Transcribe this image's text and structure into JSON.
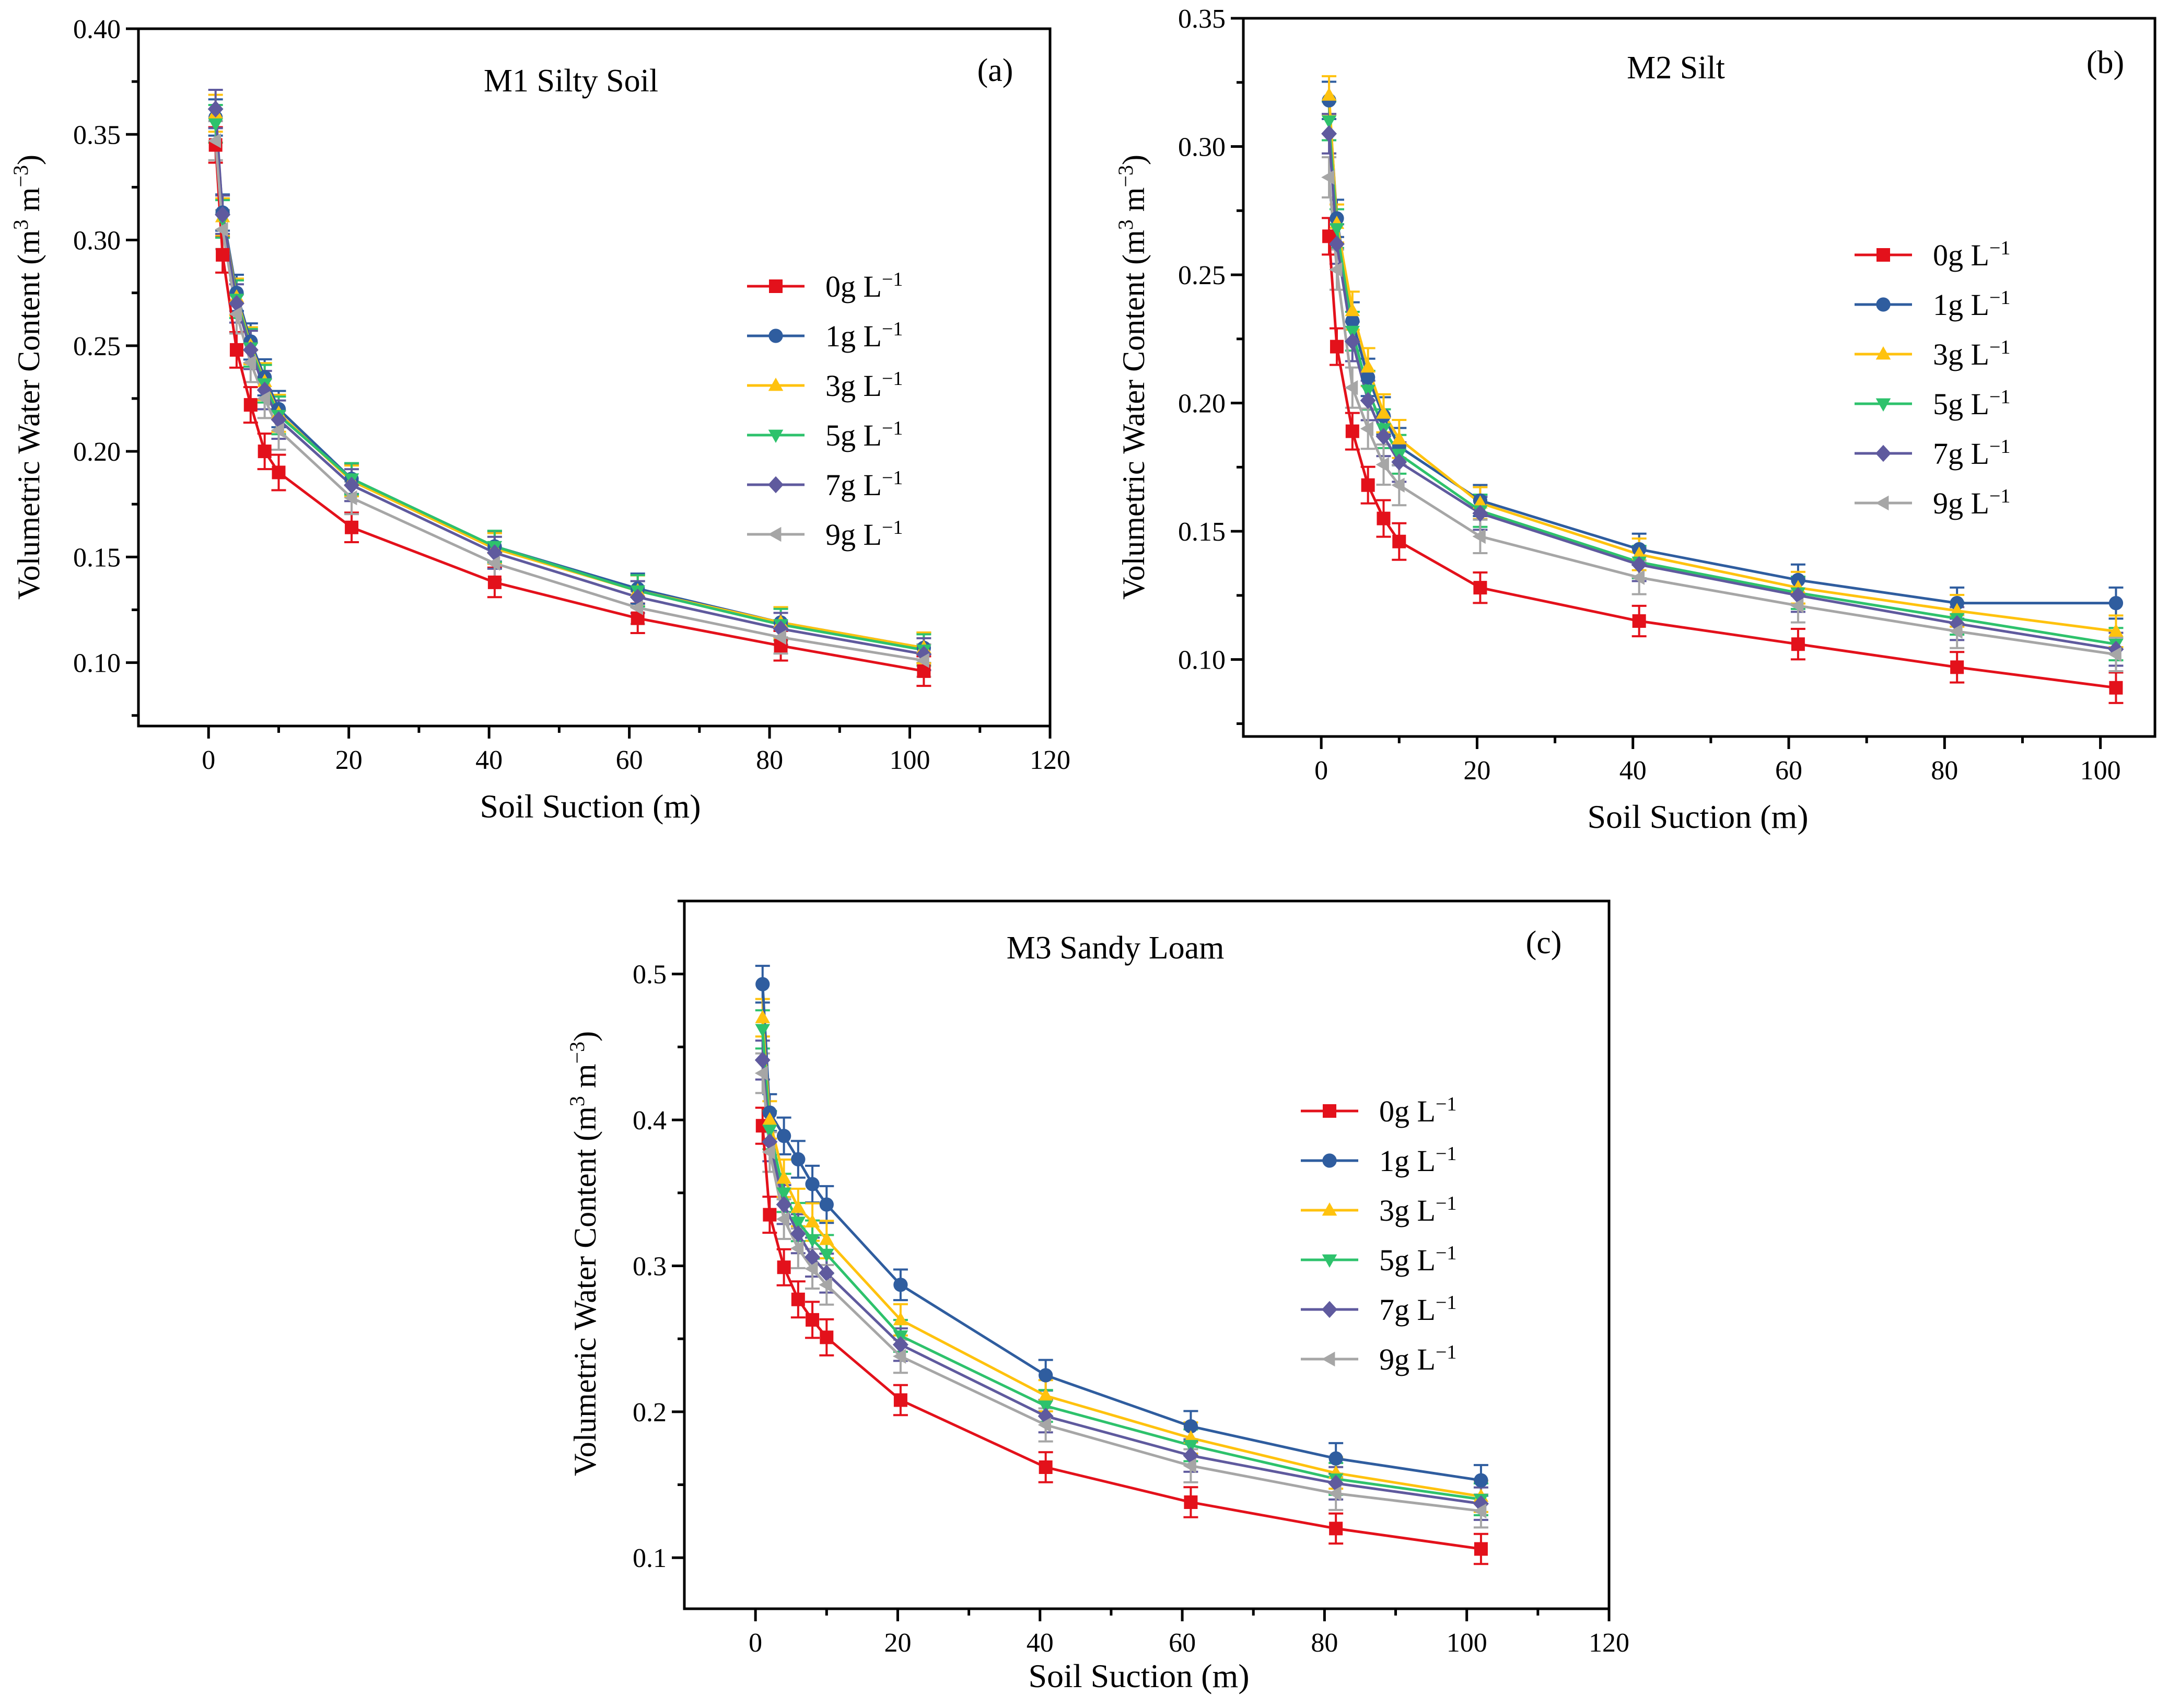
{
  "chart_data": [
    {
      "type": "line",
      "panel_label": "(a)",
      "title": "M1 Silty Soil",
      "xlabel": "Soil Suction (m)",
      "ylabel": {
        "main": "Volumetric  Water Content  (m",
        "sup1": "3",
        "mid": " m",
        "sup2": "−3",
        "end": ")"
      },
      "xlim": [
        -10,
        120
      ],
      "ylim": [
        0.07,
        0.4
      ],
      "xticks": [
        "0",
        "20",
        "40",
        "60",
        "80",
        "100",
        "120"
      ],
      "yticks": [
        "0.10",
        "0.15",
        "0.20",
        "0.25",
        "0.30",
        "0.35",
        "0.40"
      ],
      "x": [
        1,
        2,
        4,
        6,
        8,
        10,
        20.4,
        40.8,
        61.2,
        81.6,
        102
      ],
      "series": [
        {
          "name": "0g",
          "values": [
            0.345,
            0.293,
            0.248,
            0.222,
            0.2,
            0.19,
            0.164,
            0.138,
            0.121,
            0.108,
            0.096
          ]
        },
        {
          "name": "1g",
          "values": [
            0.358,
            0.313,
            0.275,
            0.252,
            0.235,
            0.22,
            0.187,
            0.155,
            0.135,
            0.119,
            0.107
          ]
        },
        {
          "name": "3g",
          "values": [
            0.36,
            0.311,
            0.273,
            0.25,
            0.233,
            0.218,
            0.186,
            0.154,
            0.134,
            0.119,
            0.107
          ]
        },
        {
          "name": "5g",
          "values": [
            0.355,
            0.31,
            0.272,
            0.249,
            0.232,
            0.217,
            0.187,
            0.155,
            0.134,
            0.118,
            0.106
          ]
        },
        {
          "name": "7g",
          "values": [
            0.362,
            0.312,
            0.27,
            0.248,
            0.229,
            0.215,
            0.184,
            0.152,
            0.131,
            0.116,
            0.104
          ]
        },
        {
          "name": "9g",
          "values": [
            0.347,
            0.305,
            0.265,
            0.242,
            0.225,
            0.21,
            0.178,
            0.147,
            0.126,
            0.112,
            0.101
          ]
        }
      ]
    },
    {
      "type": "line",
      "panel_label": "(b)",
      "title": "M2 Silt",
      "xlabel": "Soil Suction (m)",
      "ylabel": {
        "main": "Volumetric  Water Content  (m",
        "sup1": "3",
        "mid": " m",
        "sup2": "−3",
        "end": ")"
      },
      "xlim": [
        -10,
        107
      ],
      "ylim": [
        0.07,
        0.35
      ],
      "xticks": [
        "0",
        "20",
        "40",
        "60",
        "80",
        "100"
      ],
      "yticks": [
        "0.10",
        "0.15",
        "0.20",
        "0.25",
        "0.30",
        "0.35"
      ],
      "x": [
        1,
        2,
        4,
        6,
        8,
        10,
        20.4,
        40.8,
        61.2,
        81.6,
        102
      ],
      "series": [
        {
          "name": "0g",
          "values": [
            0.265,
            0.222,
            0.189,
            0.168,
            0.155,
            0.146,
            0.128,
            0.115,
            0.106,
            0.097,
            0.089
          ]
        },
        {
          "name": "1g",
          "values": [
            0.318,
            0.272,
            0.232,
            0.21,
            0.195,
            0.183,
            0.162,
            0.143,
            0.131,
            0.122,
            0.122
          ]
        },
        {
          "name": "3g",
          "values": [
            0.32,
            0.27,
            0.236,
            0.214,
            0.196,
            0.186,
            0.161,
            0.141,
            0.128,
            0.119,
            0.111
          ]
        },
        {
          "name": "5g",
          "values": [
            0.31,
            0.268,
            0.228,
            0.205,
            0.19,
            0.18,
            0.158,
            0.138,
            0.126,
            0.116,
            0.106
          ]
        },
        {
          "name": "7g",
          "values": [
            0.305,
            0.262,
            0.224,
            0.201,
            0.187,
            0.177,
            0.157,
            0.137,
            0.125,
            0.114,
            0.104
          ]
        },
        {
          "name": "9g",
          "values": [
            0.288,
            0.252,
            0.206,
            0.19,
            0.176,
            0.168,
            0.148,
            0.132,
            0.121,
            0.111,
            0.102
          ]
        }
      ]
    },
    {
      "type": "line",
      "panel_label": "(c)",
      "title": "M3 Sandy Loam",
      "xlabel": "Soil Suction (m)",
      "ylabel": {
        "main": "Volumetric  Water Content  (m",
        "sup1": "3",
        "mid": " m",
        "sup2": "−3",
        "end": ")"
      },
      "xlim": [
        -10,
        120
      ],
      "ylim": [
        0.065,
        0.55
      ],
      "xticks": [
        "0",
        "20",
        "40",
        "60",
        "80",
        "100",
        "120"
      ],
      "yticks": [
        "0.1",
        "0.2",
        "0.3",
        "0.4",
        "0.5"
      ],
      "x": [
        1,
        2,
        4,
        6,
        8,
        10,
        20.4,
        40.8,
        61.2,
        81.6,
        102
      ],
      "series": [
        {
          "name": "0g",
          "values": [
            0.396,
            0.335,
            0.299,
            0.277,
            0.263,
            0.251,
            0.208,
            0.162,
            0.138,
            0.12,
            0.106
          ]
        },
        {
          "name": "1g",
          "values": [
            0.493,
            0.405,
            0.389,
            0.373,
            0.356,
            0.342,
            0.287,
            0.225,
            0.19,
            0.168,
            0.153
          ]
        },
        {
          "name": "3g",
          "values": [
            0.47,
            0.4,
            0.36,
            0.34,
            0.33,
            0.318,
            0.263,
            0.211,
            0.182,
            0.158,
            0.142
          ]
        },
        {
          "name": "5g",
          "values": [
            0.462,
            0.393,
            0.35,
            0.33,
            0.318,
            0.308,
            0.252,
            0.204,
            0.177,
            0.154,
            0.14
          ]
        },
        {
          "name": "7g",
          "values": [
            0.441,
            0.385,
            0.342,
            0.322,
            0.306,
            0.295,
            0.246,
            0.197,
            0.17,
            0.151,
            0.137
          ]
        },
        {
          "name": "9g",
          "values": [
            0.432,
            0.378,
            0.332,
            0.312,
            0.298,
            0.287,
            0.238,
            0.191,
            0.163,
            0.144,
            0.132
          ]
        }
      ]
    }
  ],
  "legend_unit": {
    "base": " L",
    "sup": "−1"
  },
  "series_colors": [
    "#e3111b",
    "#2f5d9f",
    "#ffc20e",
    "#2ec26c",
    "#5f5a9e",
    "#a6a6a6"
  ],
  "series_markers": [
    "square",
    "circle",
    "triangle-up",
    "triangle-down",
    "diamond",
    "triangle-left"
  ]
}
